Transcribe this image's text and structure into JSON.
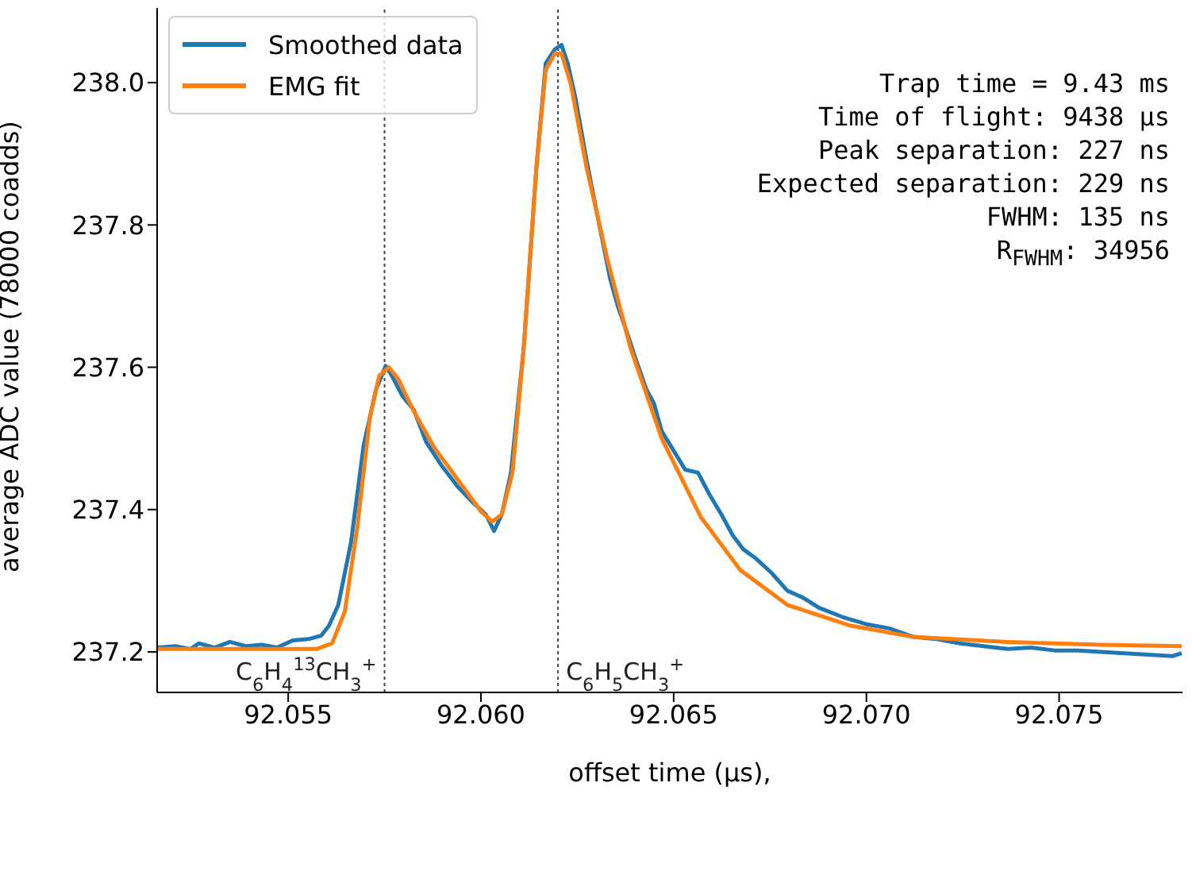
{
  "chart_data": {
    "type": "line",
    "xlabel": "offset time (μs),",
    "ylabel": "average ADC value (78000 coadds)",
    "xlim": [
      92.0516,
      92.0782
    ],
    "xticks": [
      {
        "value": 92.055,
        "label": "92.055"
      },
      {
        "value": 92.06,
        "label": "92.060"
      },
      {
        "value": 92.065,
        "label": "92.065"
      },
      {
        "value": 92.07,
        "label": "92.070"
      },
      {
        "value": 92.075,
        "label": "92.075"
      }
    ],
    "ylim": [
      237.143,
      238.105
    ],
    "yticks": [
      237.2,
      237.4,
      237.6,
      237.8,
      {
        "value": 238,
        "label": "238.0"
      }
    ],
    "grid": false,
    "legend": "top left",
    "line_style": "solid",
    "marker": "none",
    "series": [
      {
        "name": "Smoothed data",
        "color": "#1f77b4",
        "x": [
          92.05162,
          92.05207,
          92.05247,
          92.05268,
          92.05309,
          92.05349,
          92.0539,
          92.05431,
          92.05471,
          92.05512,
          92.05553,
          92.05586,
          92.05606,
          92.0563,
          92.05663,
          92.05696,
          92.05728,
          92.05753,
          92.05769,
          92.05797,
          92.05826,
          92.05858,
          92.05899,
          92.0594,
          92.05981,
          92.06013,
          92.06034,
          92.06054,
          92.06078,
          92.06111,
          92.06144,
          92.06168,
          92.06192,
          92.06209,
          92.06225,
          92.06245,
          92.06274,
          92.06306,
          92.06335,
          92.06355,
          92.0638,
          92.064,
          92.06429,
          92.06449,
          92.06469,
          92.06502,
          92.0653,
          92.06563,
          92.06592,
          92.06624,
          92.06653,
          92.06681,
          92.06714,
          92.06754,
          92.06795,
          92.06836,
          92.06877,
          92.06938,
          92.06999,
          92.0706,
          92.07121,
          92.07182,
          92.07243,
          92.07304,
          92.07365,
          92.07427,
          92.07488,
          92.07549,
          92.0761,
          92.07671,
          92.07732,
          92.07793,
          92.07818
        ],
        "values": [
          237.206,
          237.208,
          237.204,
          237.212,
          237.206,
          237.214,
          237.208,
          237.21,
          237.206,
          237.216,
          237.218,
          237.223,
          237.237,
          237.266,
          237.354,
          237.491,
          237.569,
          237.602,
          237.588,
          237.559,
          237.54,
          237.495,
          237.461,
          237.432,
          237.409,
          237.393,
          237.37,
          237.393,
          237.452,
          237.627,
          237.881,
          238.027,
          238.047,
          238.053,
          238.027,
          237.979,
          237.891,
          237.803,
          237.725,
          237.686,
          237.647,
          237.614,
          237.569,
          237.549,
          237.51,
          237.481,
          237.456,
          237.452,
          237.422,
          237.393,
          237.364,
          237.344,
          237.331,
          237.311,
          237.286,
          237.276,
          237.262,
          237.249,
          237.239,
          237.233,
          237.221,
          237.218,
          237.212,
          237.208,
          237.204,
          237.206,
          237.202,
          237.202,
          237.2,
          237.198,
          237.196,
          237.194,
          237.198
        ]
      },
      {
        "name": "EMG fit",
        "color": "#ff7f0e",
        "x": [
          92.05162,
          92.05573,
          92.05614,
          92.05647,
          92.05679,
          92.05712,
          92.05736,
          92.05761,
          92.05785,
          92.05826,
          92.05879,
          92.0594,
          92.06001,
          92.06029,
          92.06054,
          92.06082,
          92.06111,
          92.06144,
          92.06168,
          92.06192,
          92.06209,
          92.06233,
          92.06274,
          92.06327,
          92.06388,
          92.06469,
          92.06571,
          92.06673,
          92.06795,
          92.06958,
          92.07121,
          92.07365,
          92.0761,
          92.07818
        ],
        "values": [
          237.204,
          237.204,
          237.212,
          237.257,
          237.374,
          237.53,
          237.588,
          237.6,
          237.584,
          237.538,
          237.487,
          237.442,
          237.397,
          237.383,
          237.393,
          237.452,
          237.627,
          237.881,
          238.018,
          238.041,
          238.041,
          237.998,
          237.881,
          237.754,
          237.627,
          237.5,
          237.389,
          237.315,
          237.266,
          237.237,
          237.221,
          237.214,
          237.21,
          237.208
        ]
      }
    ],
    "ref_lines": [
      {
        "axis": "x",
        "value": 92.0575,
        "label": "C$_{6}$H$_{4}$$^{13}$CH$_{3}$$^{+}$",
        "line_style": "dotted"
      },
      {
        "axis": "x",
        "value": 92.062,
        "label": "C$_{6}$H$_{5}$CH$_{3}$$^{+}$",
        "line_style": "dotted"
      }
    ],
    "annotations": [
      "Trap time = 9.43 ms",
      "Time of flight: 9438 μs",
      "Peak separation: 227 ns",
      "Expected separation: 229 ns",
      "FWHM: 135 ns",
      "R$_{FWHM}$: 34956"
    ]
  }
}
